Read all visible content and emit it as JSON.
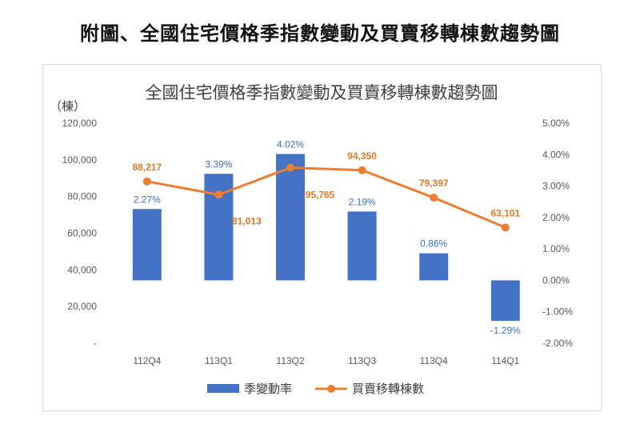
{
  "page_title": "附圖、全國住宅價格季指數變動及買賣移轉棟數趨勢圖",
  "chart_data": {
    "type": "bar+line",
    "title": "全國住宅價格季指數變動及買賣移轉棟數趨勢圖",
    "ylabel_left": "（棟）",
    "categories": [
      "112Q4",
      "113Q1",
      "113Q2",
      "113Q3",
      "113Q4",
      "114Q1"
    ],
    "left_axis": {
      "min": 0,
      "max": 120000,
      "ticks": [
        0,
        20000,
        40000,
        60000,
        80000,
        100000,
        120000
      ],
      "tick_labels": [
        "-",
        "20,000",
        "40,000",
        "60,000",
        "80,000",
        "100,000",
        "120,000"
      ]
    },
    "right_axis": {
      "min": -2.0,
      "max": 5.0,
      "ticks": [
        -2,
        -1,
        0,
        1,
        2,
        3,
        4,
        5
      ],
      "tick_labels": [
        "-2.00%",
        "-1.00%",
        "0.00%",
        "1.00%",
        "2.00%",
        "3.00%",
        "4.00%",
        "5.00%"
      ]
    },
    "series": [
      {
        "name": "季變動率",
        "type": "bar",
        "axis": "right",
        "color": "#4472c4",
        "values": [
          2.27,
          3.39,
          4.02,
          2.19,
          0.86,
          -1.29
        ],
        "labels": [
          "2.27%",
          "3.39%",
          "4.02%",
          "2.19%",
          "0.86%",
          "-1.29%"
        ]
      },
      {
        "name": "買賣移轉棟數",
        "type": "line",
        "axis": "left",
        "color": "#ed7d31",
        "values": [
          88217,
          81013,
          95765,
          94350,
          79397,
          63101
        ],
        "labels": [
          "88,217",
          "81,013",
          "95,765",
          "94,350",
          "79,397",
          "63,101"
        ]
      }
    ],
    "legend_position": "bottom",
    "grid": false
  }
}
